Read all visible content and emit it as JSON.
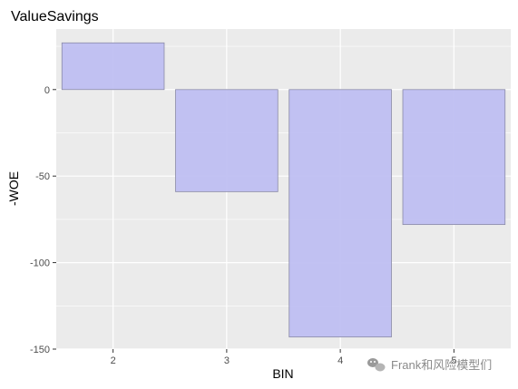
{
  "chart_data": {
    "type": "bar",
    "title": "ValueSavings",
    "xlabel": "BIN",
    "ylabel": "-WOE",
    "categories": [
      "2",
      "3",
      "4",
      "5"
    ],
    "values": [
      27,
      -59,
      -143,
      -78
    ],
    "ylim": [
      -150,
      35
    ],
    "yticks": [
      0,
      -50,
      -100,
      -150
    ],
    "grid": true,
    "bar_fill": "#bfbff2",
    "bar_stroke": "#8a8aa6",
    "panel_background": "#ebebeb",
    "grid_color": "#ffffff"
  },
  "watermark": {
    "icon": "wechat-icon",
    "text": "Frank和风险模型们"
  }
}
